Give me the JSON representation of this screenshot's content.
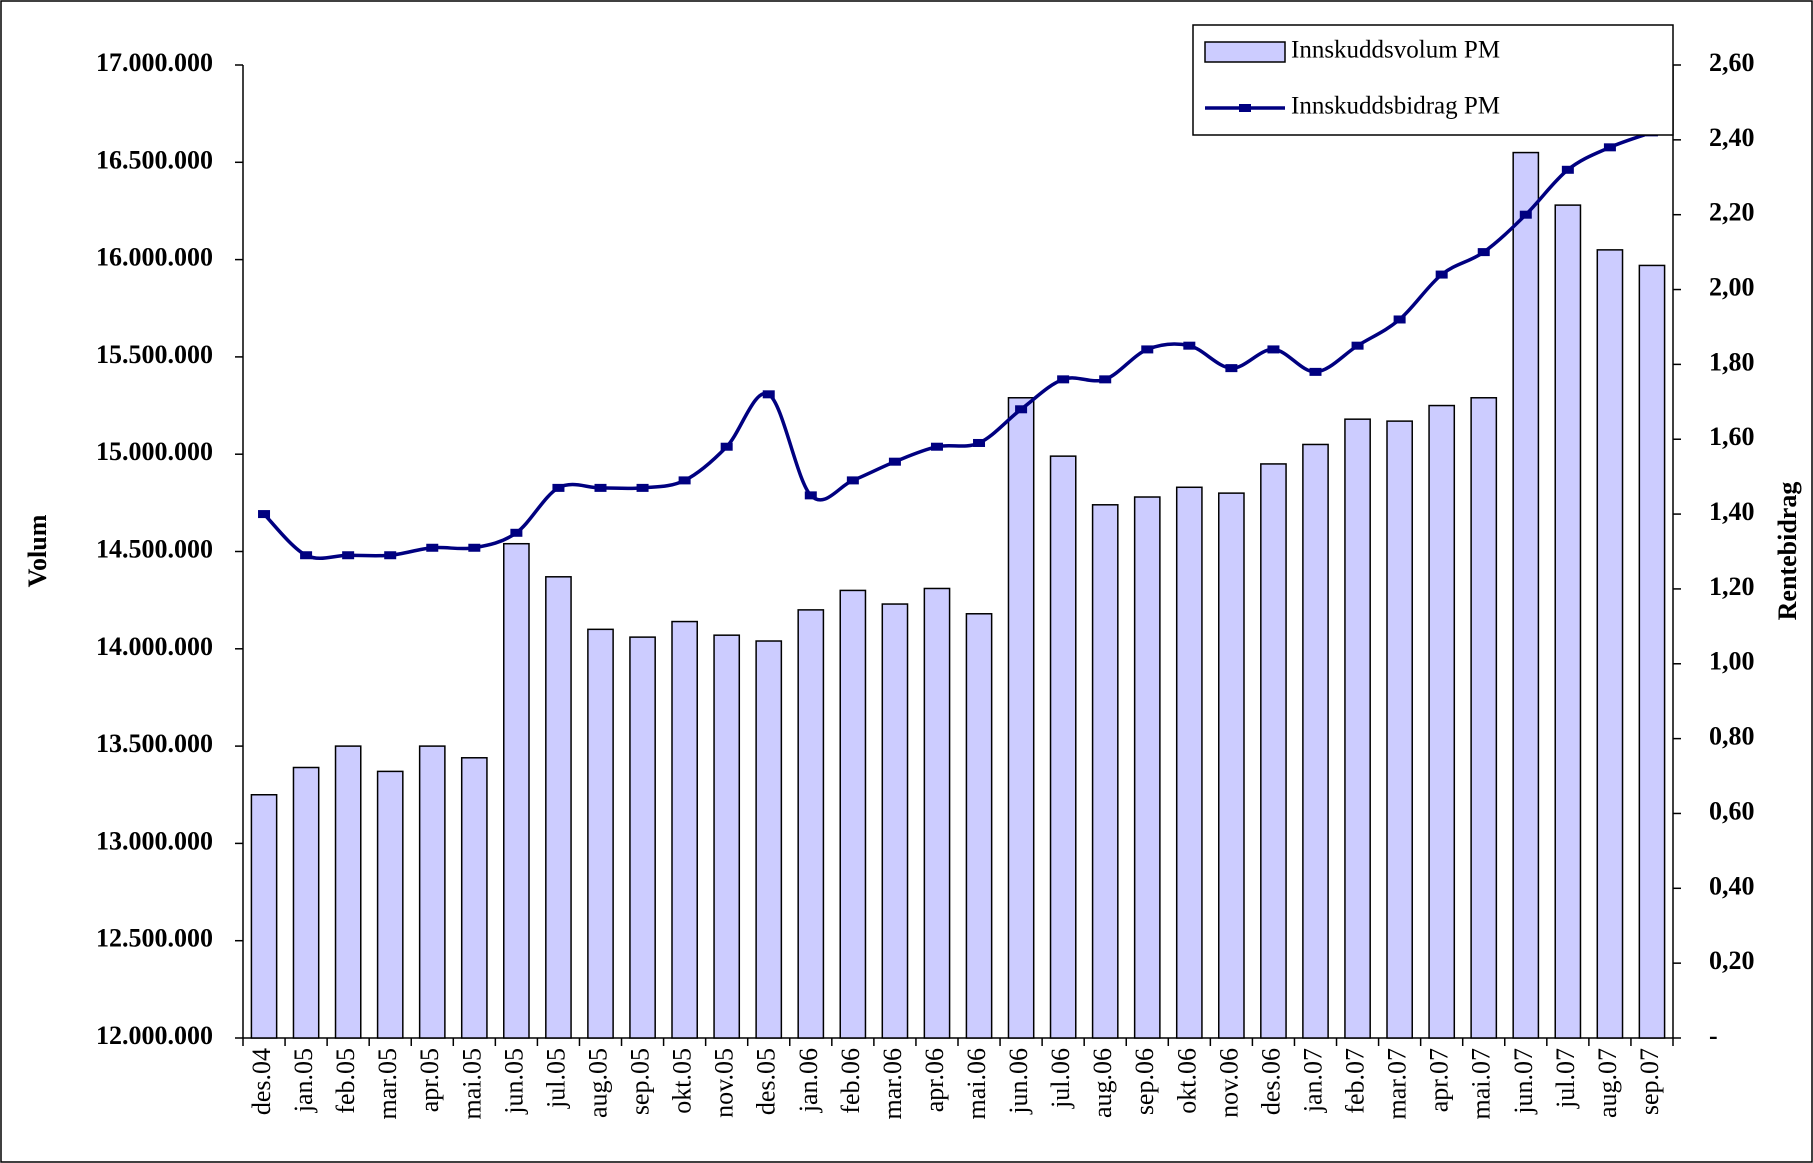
{
  "chart_data": {
    "type": "bar",
    "y_label": "Volum",
    "y2_label": "Rentebidrag",
    "categories": [
      "des.04",
      "jan.05",
      "feb.05",
      "mar.05",
      "apr.05",
      "mai.05",
      "jun.05",
      "jul.05",
      "aug.05",
      "sep.05",
      "okt.05",
      "nov.05",
      "des.05",
      "jan.06",
      "feb.06",
      "mar.06",
      "apr.06",
      "mai.06",
      "jun.06",
      "jul.06",
      "aug.06",
      "sep.06",
      "okt.06",
      "nov.06",
      "des.06",
      "jan.07",
      "feb.07",
      "mar.07",
      "apr.07",
      "mai.07",
      "jun.07",
      "jul.07",
      "aug.07",
      "sep.07"
    ],
    "series": [
      {
        "name": "Innskuddsvolum PM",
        "type": "bar",
        "color": "#ccccff",
        "values": [
          13250000,
          13390000,
          13500000,
          13370000,
          13500000,
          13440000,
          14540000,
          14370000,
          14100000,
          14060000,
          14140000,
          14070000,
          14040000,
          14200000,
          14300000,
          14230000,
          14310000,
          14180000,
          15290000,
          14990000,
          14740000,
          14780000,
          14830000,
          14800000,
          14950000,
          15050000,
          15180000,
          15170000,
          15250000,
          15290000,
          16550000,
          16280000,
          16050000,
          15970000
        ]
      },
      {
        "name": "Innskuddsbidrag PM",
        "type": "line",
        "axis": "y2",
        "color": "#000080",
        "values": [
          1.4,
          1.29,
          1.29,
          1.29,
          1.31,
          1.31,
          1.35,
          1.47,
          1.47,
          1.47,
          1.49,
          1.58,
          1.72,
          1.45,
          1.49,
          1.54,
          1.58,
          1.59,
          1.68,
          1.76,
          1.76,
          1.84,
          1.85,
          1.79,
          1.84,
          1.78,
          1.85,
          1.92,
          2.04,
          2.1,
          2.2,
          2.32,
          2.38,
          2.42
        ]
      }
    ],
    "ylim": [
      12000000,
      17000000
    ],
    "yticks": [
      {
        "value": 12000000,
        "label": "12.000.000"
      },
      {
        "value": 12500000,
        "label": "12.500.000"
      },
      {
        "value": 13000000,
        "label": "13.000.000"
      },
      {
        "value": 13500000,
        "label": "13.500.000"
      },
      {
        "value": 14000000,
        "label": "14.000.000"
      },
      {
        "value": 14500000,
        "label": "14.500.000"
      },
      {
        "value": 15000000,
        "label": "15.000.000"
      },
      {
        "value": 15500000,
        "label": "15.500.000"
      },
      {
        "value": 16000000,
        "label": "16.000.000"
      },
      {
        "value": 16500000,
        "label": "16.500.000"
      },
      {
        "value": 17000000,
        "label": "17.000.000"
      }
    ],
    "y2lim": [
      0,
      2.6
    ],
    "y2ticks": [
      {
        "value": 0,
        "label": "-"
      },
      {
        "value": 0.2,
        "label": "0,20"
      },
      {
        "value": 0.4,
        "label": "0,40"
      },
      {
        "value": 0.6,
        "label": "0,60"
      },
      {
        "value": 0.8,
        "label": "0,80"
      },
      {
        "value": 1.0,
        "label": "1,00"
      },
      {
        "value": 1.2,
        "label": "1,20"
      },
      {
        "value": 1.4,
        "label": "1,40"
      },
      {
        "value": 1.6,
        "label": "1,60"
      },
      {
        "value": 1.8,
        "label": "1,80"
      },
      {
        "value": 2.0,
        "label": "2,00"
      },
      {
        "value": 2.2,
        "label": "2,20"
      },
      {
        "value": 2.4,
        "label": "2,40"
      },
      {
        "value": 2.6,
        "label": "2,60"
      }
    ],
    "legend": "top-right",
    "grid": false
  }
}
